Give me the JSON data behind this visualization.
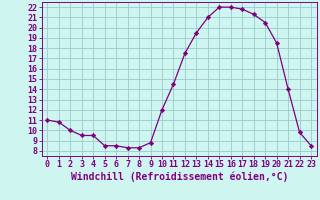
{
  "x": [
    0,
    1,
    2,
    3,
    4,
    5,
    6,
    7,
    8,
    9,
    10,
    11,
    12,
    13,
    14,
    15,
    16,
    17,
    18,
    19,
    20,
    21,
    22,
    23
  ],
  "y": [
    11.0,
    10.8,
    10.0,
    9.5,
    9.5,
    8.5,
    8.5,
    8.3,
    8.3,
    8.8,
    12.0,
    14.5,
    17.5,
    19.5,
    21.0,
    22.0,
    22.0,
    21.8,
    21.3,
    20.5,
    18.5,
    14.0,
    9.8,
    8.5
  ],
  "line_color": "#800080",
  "marker": "D",
  "marker_size": 2.2,
  "bg_color": "#cff5f0",
  "grid_color": "#99cccc",
  "xlabel": "Windchill (Refroidissement éolien,°C)",
  "xlabel_fontsize": 7,
  "tick_fontsize": 6,
  "xlim": [
    -0.5,
    23.5
  ],
  "ylim": [
    7.5,
    22.5
  ],
  "yticks": [
    8,
    9,
    10,
    11,
    12,
    13,
    14,
    15,
    16,
    17,
    18,
    19,
    20,
    21,
    22
  ],
  "xticks": [
    0,
    1,
    2,
    3,
    4,
    5,
    6,
    7,
    8,
    9,
    10,
    11,
    12,
    13,
    14,
    15,
    16,
    17,
    18,
    19,
    20,
    21,
    22,
    23
  ]
}
